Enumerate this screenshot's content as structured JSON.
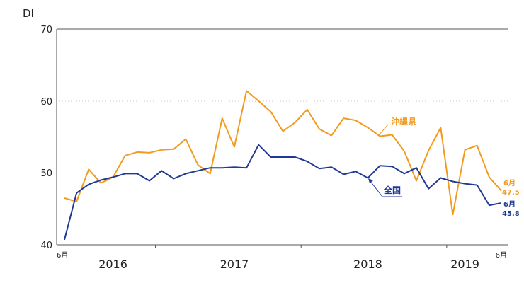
{
  "chart_data": {
    "type": "line",
    "ylabel": "DI",
    "ylim": [
      40,
      70
    ],
    "yticks": [
      40,
      50,
      60,
      70
    ],
    "reference_line": 50,
    "x_start_label": "6月",
    "x_end_label": "6月",
    "year_labels": [
      {
        "label": "2016",
        "index": 4
      },
      {
        "label": "2017",
        "index": 14
      },
      {
        "label": "2018",
        "index": 25
      },
      {
        "label": "2019",
        "index": 33
      }
    ],
    "year_boundaries": [
      7,
      19,
      31
    ],
    "series": [
      {
        "name": "沖縄県",
        "color": "#f39a1e",
        "end_label_month": "6月",
        "end_label_value": "47.5",
        "values": [
          46.5,
          46.0,
          50.5,
          48.6,
          49.4,
          52.4,
          52.9,
          52.8,
          53.2,
          53.3,
          54.7,
          51.1,
          49.9,
          57.6,
          53.6,
          61.4,
          60.0,
          58.5,
          55.8,
          57.0,
          58.8,
          56.1,
          55.2,
          57.6,
          57.3,
          56.3,
          55.1,
          55.3,
          53.0,
          48.9,
          53.1,
          56.3,
          44.2,
          53.2,
          53.8,
          49.4,
          47.5
        ]
      },
      {
        "name": "全国",
        "color": "#1f3a93",
        "end_label_month": "6月",
        "end_label_value": "45.8",
        "values": [
          40.7,
          47.2,
          48.4,
          49.0,
          49.4,
          49.9,
          49.9,
          48.9,
          50.3,
          49.2,
          49.9,
          50.3,
          50.7,
          50.7,
          50.8,
          50.7,
          53.9,
          52.2,
          52.2,
          52.2,
          51.6,
          50.6,
          50.8,
          49.8,
          50.2,
          49.3,
          51.0,
          50.9,
          49.9,
          50.7,
          47.8,
          49.3,
          48.8,
          48.5,
          48.3,
          45.5,
          45.8
        ]
      }
    ]
  }
}
